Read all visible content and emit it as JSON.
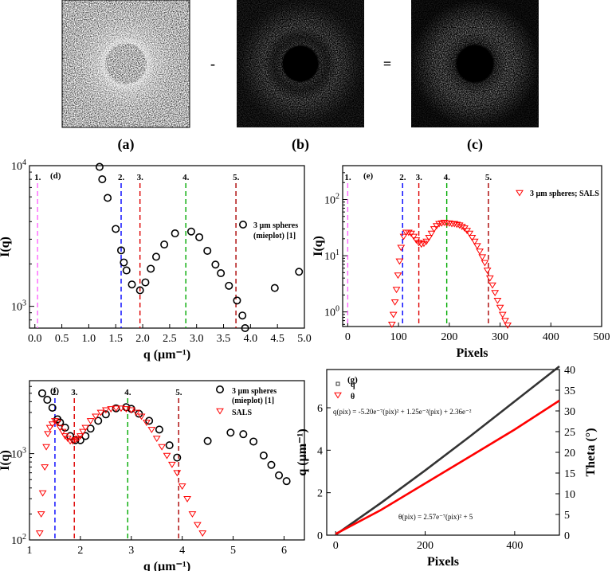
{
  "top_row": {
    "images": [
      {
        "label": "(a)",
        "description_icon": "speckle-image-small-ring"
      },
      {
        "label": "(b)",
        "description_icon": "speckle-image-wide-ring"
      },
      {
        "label": "(c)",
        "description_icon": "speckle-image-difference"
      }
    ],
    "op1": "-",
    "op2": "="
  },
  "chart_data": [
    {
      "id": "d",
      "panel_label": "(d)",
      "type": "scatter",
      "xlabel": "q (µm⁻¹)",
      "ylabel": "I(q)",
      "xlim": [
        -0.1,
        5.0
      ],
      "ylim": [
        700,
        10000
      ],
      "yscale": "log",
      "xticks": [
        "0.0",
        "0.5",
        "1.0",
        "1.5",
        "2.0",
        "2.5",
        "3.0",
        "3.5",
        "4.0",
        "4.5",
        "5.0"
      ],
      "yticks": [
        {
          "v": 1000,
          "base": "10",
          "exp": "3"
        },
        {
          "v": 10000,
          "base": "10",
          "exp": "4"
        }
      ],
      "legend": {
        "name": "3 µm spheres",
        "name2": "(mieplot) [1]",
        "marker": "open-circle",
        "color": "#000000",
        "position": "right"
      },
      "series": [
        {
          "name": "3 µm spheres (mieplot) [1]",
          "marker": "circle",
          "x": [
            1.2,
            1.25,
            1.35,
            1.5,
            1.6,
            1.65,
            1.7,
            1.8,
            1.95,
            2.05,
            2.15,
            2.25,
            2.4,
            2.6,
            2.9,
            3.05,
            3.2,
            3.35,
            3.45,
            3.6,
            3.75,
            3.85,
            3.9,
            4.45,
            4.9
          ],
          "y": [
            9800,
            8000,
            5900,
            3550,
            2500,
            2050,
            1800,
            1430,
            1300,
            1480,
            1850,
            2250,
            2750,
            3300,
            3400,
            3100,
            2480,
            1980,
            1720,
            1400,
            1100,
            860,
            700,
            1350,
            1760
          ]
        }
      ],
      "vlines": [
        {
          "x": 0.05,
          "label": "1.",
          "color": "#ff66ff"
        },
        {
          "x": 1.6,
          "label": "2.",
          "color": "#0000ff"
        },
        {
          "x": 1.95,
          "label": "3.",
          "color": "#dd0000"
        },
        {
          "x": 2.8,
          "label": "4.",
          "color": "#00aa00"
        },
        {
          "x": 3.73,
          "label": "5.",
          "color": "#aa0000"
        }
      ]
    },
    {
      "id": "e",
      "panel_label": "(e)",
      "type": "scatter",
      "xlabel": "Pixels",
      "ylabel": "I(q)",
      "xlim": [
        -10,
        500
      ],
      "ylim": [
        0.55,
        400
      ],
      "yscale": "log",
      "xticks": [
        "0",
        "100",
        "200",
        "300",
        "400",
        "500"
      ],
      "yticks": [
        {
          "v": 1,
          "base": "10",
          "exp": "0"
        },
        {
          "v": 10,
          "base": "10",
          "exp": "1"
        },
        {
          "v": 100,
          "base": "10",
          "exp": "2"
        }
      ],
      "legend": {
        "name": "3 µm spheres; SALS",
        "marker": "open-triangle-down",
        "color": "#ff0000",
        "position": "top-right"
      },
      "series": [
        {
          "name": "3 µm spheres; SALS",
          "marker": "triangle-down",
          "color": "#ff0000",
          "x": [
            87,
            90,
            93,
            96,
            99,
            102,
            105,
            110,
            115,
            120,
            125,
            130,
            135,
            140,
            145,
            150,
            155,
            160,
            165,
            170,
            175,
            180,
            185,
            190,
            195,
            200,
            205,
            210,
            215,
            220,
            225,
            230,
            235,
            240,
            245,
            250,
            255,
            260,
            265,
            270,
            275,
            280,
            285,
            290,
            295,
            300,
            305,
            310,
            315
          ],
          "y": [
            0.6,
            0.9,
            1.5,
            2.5,
            4.5,
            8,
            14,
            22,
            26,
            26,
            25,
            22,
            19,
            17,
            16,
            16.5,
            18,
            21,
            25,
            30,
            34,
            37,
            38,
            39,
            38,
            38,
            37,
            37,
            36,
            35,
            33,
            31,
            28,
            25,
            21,
            18,
            15,
            12,
            9.5,
            7.5,
            5.5,
            4,
            3,
            2.2,
            1.6,
            1.2,
            0.9,
            0.7,
            0.58
          ]
        }
      ],
      "vlines": [
        {
          "x": 0,
          "label": "1.",
          "color": "#ff66ff"
        },
        {
          "x": 108,
          "label": "2.",
          "color": "#0000ff"
        },
        {
          "x": 140,
          "label": "3.",
          "color": "#dd0000"
        },
        {
          "x": 195,
          "label": "4.",
          "color": "#00aa00"
        },
        {
          "x": 277,
          "label": "5.",
          "color": "#aa0000"
        }
      ]
    },
    {
      "id": "f",
      "panel_label": "(f)",
      "type": "scatter",
      "xlabel": "q (µm⁻¹)",
      "ylabel": "I(q)",
      "xlim": [
        1.0,
        6.4
      ],
      "ylim": [
        100,
        7000
      ],
      "yscale": "log",
      "xticks": [
        "1",
        "2",
        "3",
        "4",
        "5",
        "6"
      ],
      "yticks": [
        {
          "v": 100,
          "base": "10",
          "exp": "2"
        },
        {
          "v": 1000,
          "base": "10",
          "exp": "3"
        }
      ],
      "legend": {
        "name": "3 µm spheres",
        "name2": "(mieplot) [1]",
        "name3": "SALS",
        "position": "top-right"
      },
      "series": [
        {
          "name": "3 µm spheres (mieplot) [1]",
          "marker": "circle",
          "color": "#000000",
          "x": [
            1.25,
            1.35,
            1.45,
            1.55,
            1.6,
            1.7,
            1.8,
            1.9,
            2.0,
            2.1,
            2.2,
            2.35,
            2.5,
            2.7,
            2.9,
            3.0,
            3.15,
            3.35,
            3.55,
            3.75,
            3.9,
            4.5,
            4.95,
            5.2,
            5.4,
            5.6,
            5.75,
            5.9,
            6.05
          ],
          "y": [
            5000,
            4200,
            3400,
            2500,
            2300,
            2000,
            1600,
            1430,
            1430,
            1600,
            1950,
            2400,
            2850,
            3350,
            3450,
            3300,
            2900,
            2400,
            1900,
            1250,
            900,
            1400,
            1750,
            1680,
            1380,
            950,
            740,
            560,
            480
          ]
        }
      ],
      "series2": [
        {
          "name": "SALS",
          "marker": "triangle-down",
          "color": "#ff0000",
          "x": [
            1.2,
            1.23,
            1.26,
            1.3,
            1.33,
            1.36,
            1.4,
            1.45,
            1.5,
            1.55,
            1.6,
            1.65,
            1.7,
            1.75,
            1.8,
            1.85,
            1.9,
            1.95,
            2.0,
            2.05,
            2.1,
            2.2,
            2.3,
            2.4,
            2.5,
            2.6,
            2.7,
            2.8,
            2.9,
            3.0,
            3.1,
            3.2,
            3.3,
            3.4,
            3.5,
            3.6,
            3.7,
            3.8,
            3.9,
            4.0,
            4.1,
            4.2,
            4.3,
            4.4
          ],
          "y": [
            120,
            200,
            350,
            700,
            1200,
            1700,
            2000,
            2200,
            2400,
            2300,
            2000,
            1800,
            1600,
            1500,
            1400,
            1400,
            1450,
            1500,
            1600,
            1800,
            2000,
            2400,
            2700,
            3000,
            3200,
            3300,
            3350,
            3350,
            3300,
            3200,
            3000,
            2700,
            2300,
            1900,
            1500,
            1200,
            950,
            750,
            600,
            420,
            300,
            200,
            150,
            120
          ]
        }
      ],
      "vlines": [
        {
          "x": 1.5,
          "label": "2.",
          "color": "#0000ff"
        },
        {
          "x": 1.88,
          "label": "3.",
          "color": "#dd0000"
        },
        {
          "x": 2.93,
          "label": "4.",
          "color": "#00aa00"
        },
        {
          "x": 3.93,
          "label": "5.",
          "color": "#aa0000"
        }
      ]
    },
    {
      "id": "g",
      "panel_label": "(g)",
      "type": "line",
      "xlabel": "Pixels",
      "ylabel": "q (µm⁻¹)",
      "ylabel_right": "Theta (°)",
      "xlim": [
        -20,
        500
      ],
      "ylim": [
        0,
        7.8
      ],
      "ylim_right": [
        0,
        40
      ],
      "xticks": [
        "0",
        "200",
        "400"
      ],
      "yticks": [
        "0",
        "2",
        "4",
        "6"
      ],
      "yticks_right": [
        "0",
        "5",
        "10",
        "15",
        "20",
        "25",
        "30",
        "35",
        "40"
      ],
      "legend": {
        "name": "q",
        "name2": "θ",
        "position": "top-left"
      },
      "equations": {
        "q": "q(pix) = -5.20e⁻⁷(pix)² + 1.25e⁻²(pix) + 2.36e⁻²",
        "theta": "θ(pix) = 2.57e⁻⁷(pix)² + 5"
      },
      "series": [
        {
          "name": "q",
          "axis": "left",
          "color": "#333333",
          "x": [
            0,
            100,
            200,
            300,
            400,
            500
          ],
          "y": [
            0.02,
            1.5,
            3.05,
            4.65,
            6.3,
            7.95
          ]
        },
        {
          "name": "θ",
          "axis": "right",
          "color": "#ff0000",
          "x": [
            0,
            100,
            200,
            300,
            400,
            500
          ],
          "y": [
            0.3,
            6,
            12.5,
            19,
            25.5,
            32.5
          ]
        }
      ]
    }
  ]
}
